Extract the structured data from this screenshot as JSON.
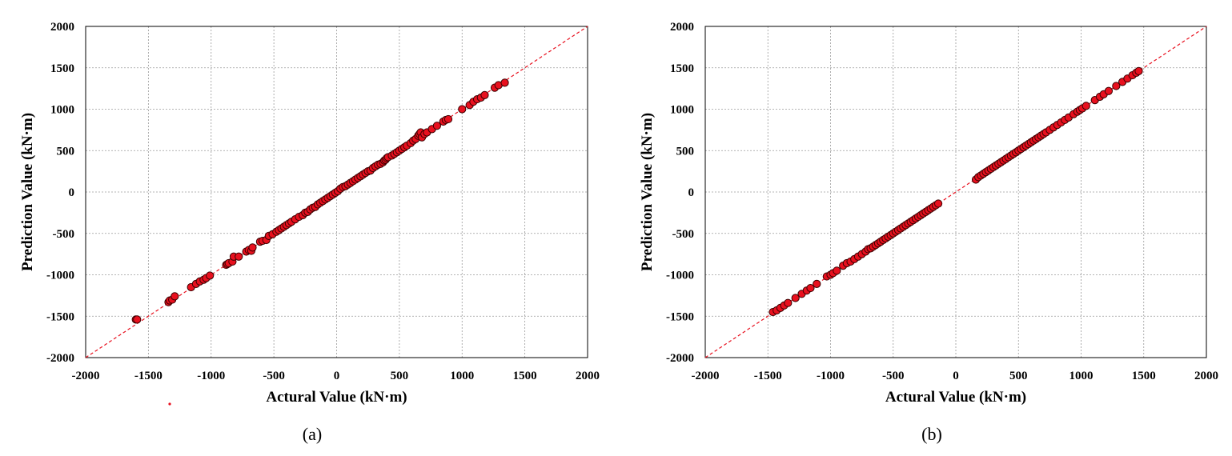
{
  "chart_data": [
    {
      "type": "scatter",
      "caption": "(a)",
      "xlabel": "Actural Value (kN·m)",
      "ylabel": "Prediction Value (kN·m)",
      "xlim": [
        -2000,
        2000
      ],
      "ylim": [
        -2000,
        2000
      ],
      "xticks": [
        -2000,
        -1500,
        -1000,
        -500,
        0,
        500,
        1000,
        1500,
        2000
      ],
      "yticks": [
        -2000,
        -1500,
        -1000,
        -500,
        0,
        500,
        1000,
        1500,
        2000
      ],
      "grid": true,
      "reference_line": "y = x",
      "colors": {
        "marker_fill": "#e8101e",
        "marker_edge": "#3a0000",
        "reference_line": "#e8101e",
        "grid": "#9a9a9a"
      },
      "x": [
        -1600,
        -1590,
        -1340,
        -1330,
        -1310,
        -1290,
        -1160,
        -1120,
        -1090,
        -1060,
        -1040,
        -1010,
        -880,
        -870,
        -860,
        -830,
        -820,
        -780,
        -720,
        -700,
        -680,
        -670,
        -610,
        -590,
        -560,
        -540,
        -510,
        -480,
        -460,
        -440,
        -420,
        -400,
        -380,
        -360,
        -330,
        -300,
        -270,
        -250,
        -230,
        -210,
        -190,
        -170,
        -150,
        -130,
        -110,
        -90,
        -70,
        -50,
        -30,
        -10,
        10,
        30,
        50,
        70,
        90,
        110,
        130,
        150,
        170,
        190,
        210,
        230,
        250,
        270,
        290,
        310,
        330,
        350,
        370,
        380,
        390,
        400,
        410,
        440,
        460,
        480,
        500,
        520,
        540,
        560,
        590,
        610,
        630,
        650,
        660,
        670,
        680,
        700,
        720,
        760,
        800,
        850,
        870,
        890,
        1000,
        1060,
        1090,
        1120,
        1150,
        1180,
        1260,
        1290,
        1340
      ],
      "y": [
        -1540,
        -1540,
        -1330,
        -1310,
        -1300,
        -1260,
        -1150,
        -1110,
        -1080,
        -1060,
        -1040,
        -1010,
        -880,
        -870,
        -860,
        -840,
        -780,
        -780,
        -720,
        -700,
        -710,
        -670,
        -600,
        -590,
        -580,
        -530,
        -510,
        -480,
        -460,
        -440,
        -420,
        -400,
        -380,
        -360,
        -330,
        -300,
        -280,
        -250,
        -240,
        -210,
        -190,
        -180,
        -150,
        -130,
        -110,
        -90,
        -70,
        -50,
        -30,
        -10,
        10,
        40,
        60,
        70,
        90,
        110,
        130,
        150,
        170,
        190,
        210,
        230,
        250,
        260,
        290,
        310,
        330,
        340,
        360,
        380,
        390,
        410,
        420,
        440,
        460,
        480,
        500,
        520,
        540,
        560,
        590,
        620,
        640,
        680,
        700,
        720,
        660,
        700,
        720,
        760,
        800,
        850,
        870,
        880,
        1000,
        1050,
        1090,
        1120,
        1140,
        1170,
        1260,
        1290,
        1320
      ]
    },
    {
      "type": "scatter",
      "caption": "(b)",
      "xlabel": "Actural Value (kN·m)",
      "ylabel": "Prediction Value (kN·m)",
      "xlim": [
        -2000,
        2000
      ],
      "ylim": [
        -2000,
        2000
      ],
      "xticks": [
        -2000,
        -1500,
        -1000,
        -500,
        0,
        500,
        1000,
        1500,
        2000
      ],
      "yticks": [
        -2000,
        -1500,
        -1000,
        -500,
        0,
        500,
        1000,
        1500,
        2000
      ],
      "grid": true,
      "reference_line": "y = x",
      "colors": {
        "marker_fill": "#e8101e",
        "marker_edge": "#3a0000",
        "reference_line": "#e8101e",
        "grid": "#9a9a9a"
      },
      "x": [
        -1460,
        -1430,
        -1400,
        -1370,
        -1340,
        -1280,
        -1230,
        -1190,
        -1160,
        -1110,
        -1030,
        -1000,
        -980,
        -950,
        -900,
        -870,
        -840,
        -810,
        -780,
        -750,
        -720,
        -700,
        -680,
        -660,
        -640,
        -620,
        -600,
        -580,
        -560,
        -540,
        -520,
        -500,
        -480,
        -460,
        -440,
        -420,
        -400,
        -380,
        -360,
        -340,
        -320,
        -300,
        -280,
        -260,
        -240,
        -220,
        -200,
        -180,
        -160,
        -140,
        160,
        180,
        200,
        220,
        240,
        260,
        280,
        300,
        320,
        340,
        360,
        380,
        400,
        420,
        440,
        460,
        480,
        500,
        520,
        540,
        560,
        580,
        600,
        620,
        640,
        660,
        680,
        700,
        720,
        750,
        780,
        810,
        840,
        870,
        900,
        940,
        970,
        990,
        1010,
        1040,
        1110,
        1150,
        1180,
        1220,
        1280,
        1330,
        1370,
        1410,
        1440,
        1460
      ],
      "y": [
        -1450,
        -1430,
        -1400,
        -1370,
        -1340,
        -1280,
        -1230,
        -1190,
        -1160,
        -1110,
        -1020,
        -1000,
        -980,
        -950,
        -890,
        -860,
        -840,
        -810,
        -780,
        -750,
        -720,
        -690,
        -680,
        -660,
        -640,
        -620,
        -600,
        -580,
        -560,
        -540,
        -520,
        -500,
        -480,
        -460,
        -440,
        -420,
        -400,
        -380,
        -360,
        -340,
        -320,
        -300,
        -280,
        -260,
        -240,
        -220,
        -200,
        -180,
        -160,
        -140,
        150,
        180,
        200,
        220,
        240,
        260,
        280,
        300,
        320,
        340,
        360,
        380,
        400,
        420,
        440,
        460,
        480,
        500,
        520,
        540,
        560,
        580,
        600,
        620,
        640,
        660,
        680,
        700,
        720,
        750,
        780,
        810,
        840,
        870,
        900,
        940,
        970,
        990,
        1010,
        1040,
        1110,
        1150,
        1180,
        1220,
        1280,
        1330,
        1370,
        1410,
        1440,
        1460
      ]
    }
  ]
}
